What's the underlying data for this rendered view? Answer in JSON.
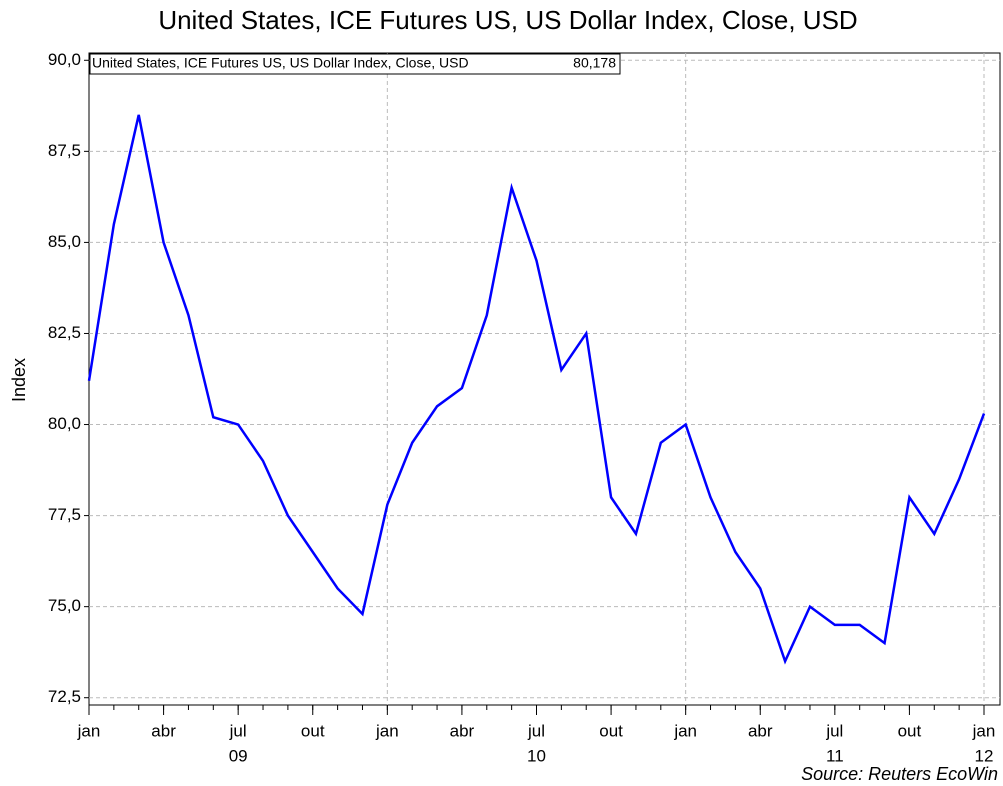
{
  "chart_data": {
    "type": "line",
    "title": "United States, ICE Futures US, US Dollar Index, Close, USD",
    "y_label": "Index",
    "source": "Source: Reuters EcoWin",
    "legend_value": "80,178",
    "x": [
      "2009-01",
      "2009-02",
      "2009-03",
      "2009-04",
      "2009-05",
      "2009-06",
      "2009-07",
      "2009-08",
      "2009-09",
      "2009-10",
      "2009-11",
      "2009-12",
      "2010-01",
      "2010-02",
      "2010-03",
      "2010-04",
      "2010-05",
      "2010-06",
      "2010-07",
      "2010-08",
      "2010-09",
      "2010-10",
      "2010-11",
      "2010-12",
      "2011-01",
      "2011-02",
      "2011-03",
      "2011-04",
      "2011-05",
      "2011-06",
      "2011-07",
      "2011-08",
      "2011-09",
      "2011-10",
      "2011-11",
      "2011-12",
      "2012-01"
    ],
    "series": [
      {
        "name": "United States, ICE Futures US, US Dollar Index, Close, USD",
        "color": "#0000ff",
        "values": [
          81.2,
          85.5,
          88.5,
          85.0,
          83.0,
          80.2,
          80.0,
          79.0,
          77.5,
          76.5,
          75.5,
          74.8,
          77.8,
          79.5,
          80.5,
          81.0,
          83.0,
          86.5,
          84.5,
          81.5,
          82.5,
          78.0,
          77.0,
          79.5,
          80.0,
          78.0,
          76.5,
          75.5,
          73.5,
          75.0,
          74.5,
          74.5,
          74.0,
          78.0,
          77.0,
          78.5,
          80.3
        ]
      }
    ],
    "xlim": [
      "2009-01",
      "2012-01"
    ],
    "xticks": [
      {
        "value": "2009-01",
        "label": "jan"
      },
      {
        "value": "2009-04",
        "label": "abr"
      },
      {
        "value": "2009-07",
        "label": "jul"
      },
      {
        "value": "2009-10",
        "label": "out"
      },
      {
        "value": "2010-01",
        "label": "jan"
      },
      {
        "value": "2010-04",
        "label": "abr"
      },
      {
        "value": "2010-07",
        "label": "jul"
      },
      {
        "value": "2010-10",
        "label": "out"
      },
      {
        "value": "2011-01",
        "label": "jan"
      },
      {
        "value": "2011-04",
        "label": "abr"
      },
      {
        "value": "2011-07",
        "label": "jul"
      },
      {
        "value": "2011-10",
        "label": "out"
      },
      {
        "value": "2012-01",
        "label": "jan"
      }
    ],
    "year_labels": [
      {
        "value": "2009-07",
        "label": "09"
      },
      {
        "value": "2010-07",
        "label": "10"
      },
      {
        "value": "2011-07",
        "label": "11"
      },
      {
        "value": "2012-01",
        "label": "12"
      }
    ],
    "ylim": [
      72.3,
      90.2
    ],
    "yticks": [
      {
        "value": 72.5,
        "label": "72,5"
      },
      {
        "value": 75,
        "label": "75,0"
      },
      {
        "value": 77.5,
        "label": "77,5"
      },
      {
        "value": 80,
        "label": "80,0"
      },
      {
        "value": 82.5,
        "label": "82,5"
      },
      {
        "value": 85,
        "label": "85,0"
      },
      {
        "value": 87.5,
        "label": "87,5"
      },
      {
        "value": 90,
        "label": "90,0"
      }
    ],
    "grid": true
  }
}
